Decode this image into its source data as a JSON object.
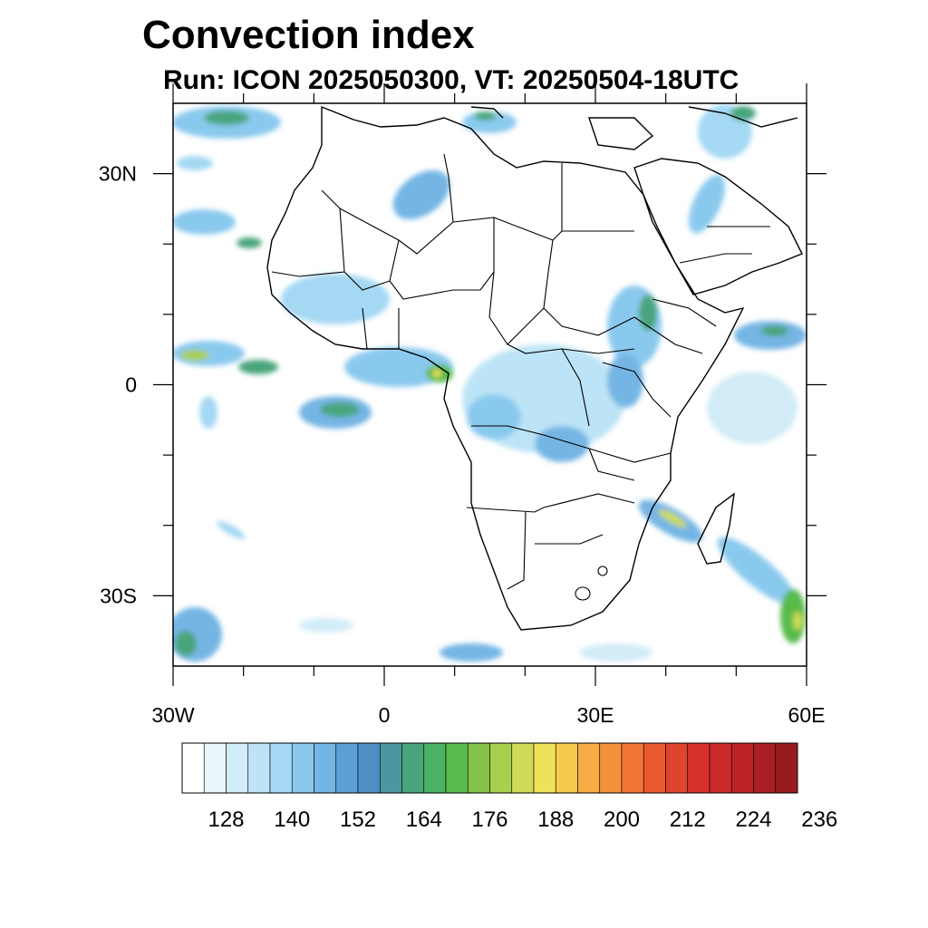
{
  "title": "Convection index",
  "subtitle": "Run: ICON 2025050300,  VT: 20250504-18UTC",
  "map": {
    "lon_range": [
      -30,
      60
    ],
    "lat_range": [
      -40,
      40
    ],
    "lon_labels": [
      {
        "lon": -30,
        "text": "30W"
      },
      {
        "lon": 0,
        "text": "0"
      },
      {
        "lon": 30,
        "text": "30E"
      },
      {
        "lon": 60,
        "text": "60E"
      }
    ],
    "lat_labels": [
      {
        "lat": 30,
        "text": "30N"
      },
      {
        "lat": 0,
        "text": "0"
      },
      {
        "lat": -30,
        "text": "30S"
      }
    ]
  },
  "colorbar": {
    "colors": [
      "#ffffff",
      "#eaf5fc",
      "#d2ecf8",
      "#bde4f6",
      "#a4d8f3",
      "#8ac9ee",
      "#74b5e4",
      "#5c9fd6",
      "#4f8fc7",
      "#4b97a0",
      "#48a57c",
      "#4bb363",
      "#58bb4c",
      "#86c24a",
      "#a9cf4f",
      "#cfdb56",
      "#efe25a",
      "#f6c94f",
      "#f6ad45",
      "#f4923b",
      "#f17534",
      "#ea5a2f",
      "#e0442d",
      "#d7332b",
      "#cb2a2a",
      "#bc2327",
      "#ab1e23",
      "#981b20"
    ],
    "labels": [
      "128",
      "140",
      "152",
      "164",
      "176",
      "188",
      "200",
      "212",
      "224",
      "236"
    ]
  }
}
